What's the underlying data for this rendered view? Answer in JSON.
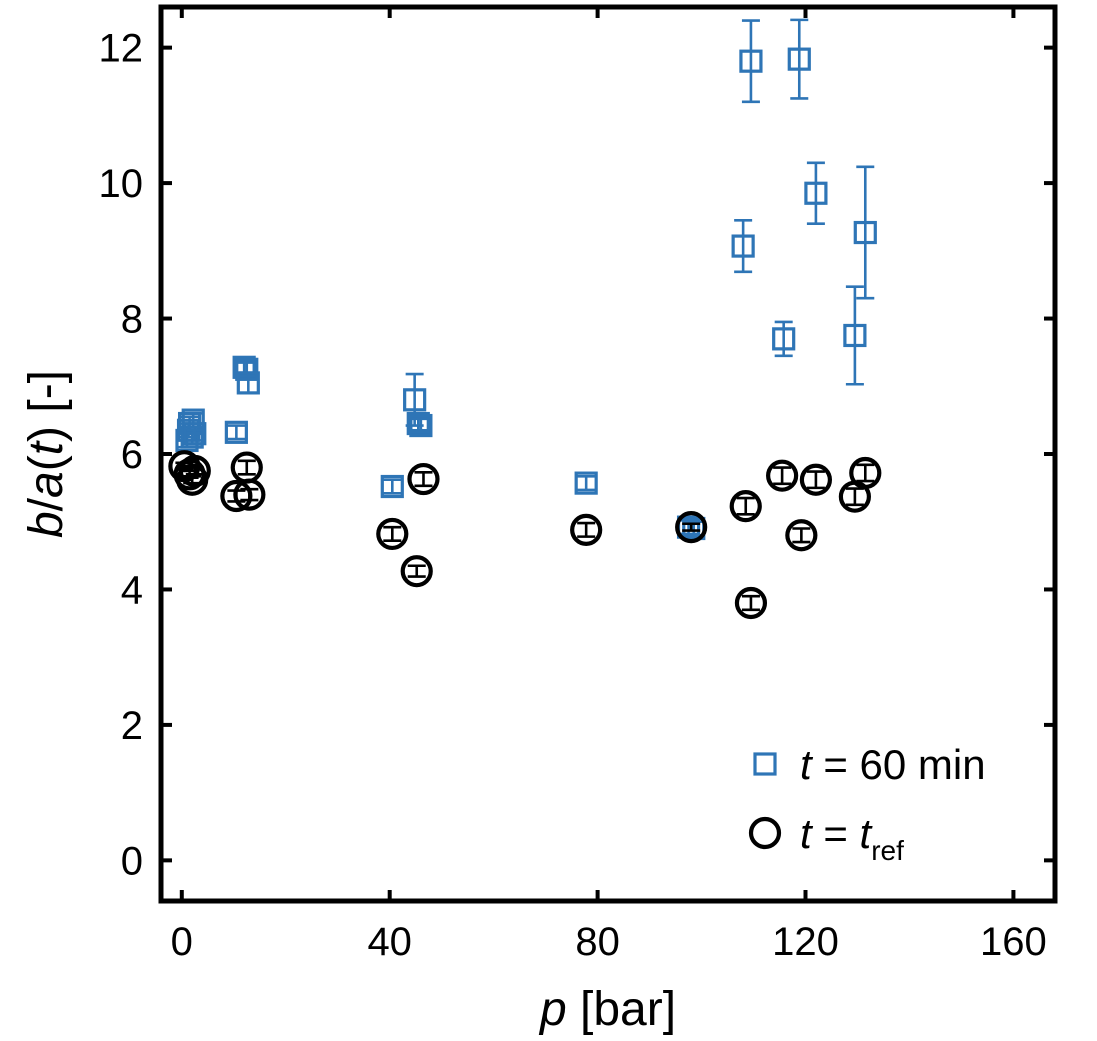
{
  "chart_data": {
    "type": "scatter",
    "title": "",
    "x_axis": {
      "label_var": "p",
      "label_unit": " [bar]",
      "range": [
        -4,
        168
      ],
      "ticks": [
        0,
        40,
        80,
        120,
        160
      ],
      "tick_labels": [
        "0",
        "40",
        "80",
        "120",
        "160"
      ]
    },
    "y_axis": {
      "label_parts": [
        "b",
        "/",
        "a",
        "(",
        "t",
        ") [-]"
      ],
      "range": [
        -0.6,
        12.6
      ],
      "ticks": [
        0,
        2,
        4,
        6,
        8,
        10,
        12
      ],
      "tick_labels": [
        "0",
        "2",
        "4",
        "6",
        "8",
        "10",
        "12"
      ]
    },
    "grid": false,
    "legend_position": "bottom-right",
    "series": [
      {
        "name_var": "t",
        "name_rest": " = 60 min",
        "marker": "square",
        "color": "#2e75b6",
        "points": [
          {
            "x": 1.0,
            "y": 6.2,
            "err": 0.1
          },
          {
            "x": 1.3,
            "y": 6.35,
            "err": 0.1
          },
          {
            "x": 1.5,
            "y": 6.45,
            "err": 0.1
          },
          {
            "x": 2.0,
            "y": 6.25,
            "err": 0.1
          },
          {
            "x": 2.2,
            "y": 6.5,
            "err": 0.1
          },
          {
            "x": 2.5,
            "y": 6.3,
            "err": 0.1
          },
          {
            "x": 10.5,
            "y": 6.32,
            "err": 0.1
          },
          {
            "x": 12.0,
            "y": 7.28,
            "err": 0.1
          },
          {
            "x": 12.5,
            "y": 7.25,
            "err": 0.1
          },
          {
            "x": 12.8,
            "y": 7.05,
            "err": 0.15
          },
          {
            "x": 40.5,
            "y": 5.52,
            "err": 0.1
          },
          {
            "x": 44.8,
            "y": 6.8,
            "err": 0.38
          },
          {
            "x": 45.5,
            "y": 6.45,
            "err": 0.1
          },
          {
            "x": 46.0,
            "y": 6.42,
            "err": 0.1
          },
          {
            "x": 77.8,
            "y": 5.57,
            "err": 0.1
          },
          {
            "x": 97.5,
            "y": 4.92,
            "err": 0.1
          },
          {
            "x": 98.5,
            "y": 4.9,
            "err": 0.1
          },
          {
            "x": 108.0,
            "y": 9.07,
            "err": 0.38
          },
          {
            "x": 109.5,
            "y": 11.8,
            "err": 0.6
          },
          {
            "x": 115.8,
            "y": 7.7,
            "err": 0.25
          },
          {
            "x": 118.8,
            "y": 11.83,
            "err": 0.58
          },
          {
            "x": 122.0,
            "y": 9.85,
            "err": 0.45
          },
          {
            "x": 129.5,
            "y": 7.75,
            "err": 0.72
          },
          {
            "x": 131.5,
            "y": 9.27,
            "err": 0.97
          }
        ]
      },
      {
        "name_var": "t",
        "name_rest": " = ",
        "name_sub_var": "t",
        "name_sub": "ref",
        "marker": "circle",
        "color": "#000000",
        "points": [
          {
            "x": 0.5,
            "y": 5.82,
            "err": 0.05
          },
          {
            "x": 1.5,
            "y": 5.7,
            "err": 0.05
          },
          {
            "x": 2.0,
            "y": 5.62,
            "err": 0.05
          },
          {
            "x": 2.5,
            "y": 5.75,
            "err": 0.05
          },
          {
            "x": 10.5,
            "y": 5.38,
            "err": 0.08
          },
          {
            "x": 12.5,
            "y": 5.8,
            "err": 0.1
          },
          {
            "x": 13.0,
            "y": 5.4,
            "err": 0.08
          },
          {
            "x": 40.5,
            "y": 4.82,
            "err": 0.1
          },
          {
            "x": 45.2,
            "y": 4.27,
            "err": 0.08
          },
          {
            "x": 46.5,
            "y": 5.63,
            "err": 0.1
          },
          {
            "x": 77.8,
            "y": 4.88,
            "err": 0.1
          },
          {
            "x": 98.0,
            "y": 4.92,
            "err": 0.05
          },
          {
            "x": 108.5,
            "y": 5.23,
            "err": 0.12
          },
          {
            "x": 109.5,
            "y": 3.8,
            "err": 0.1
          },
          {
            "x": 115.5,
            "y": 5.68,
            "err": 0.12
          },
          {
            "x": 119.2,
            "y": 4.8,
            "err": 0.1
          },
          {
            "x": 122.0,
            "y": 5.62,
            "err": 0.12
          },
          {
            "x": 129.5,
            "y": 5.37,
            "err": 0.12
          },
          {
            "x": 131.5,
            "y": 5.72,
            "err": 0.12
          }
        ]
      }
    ]
  }
}
